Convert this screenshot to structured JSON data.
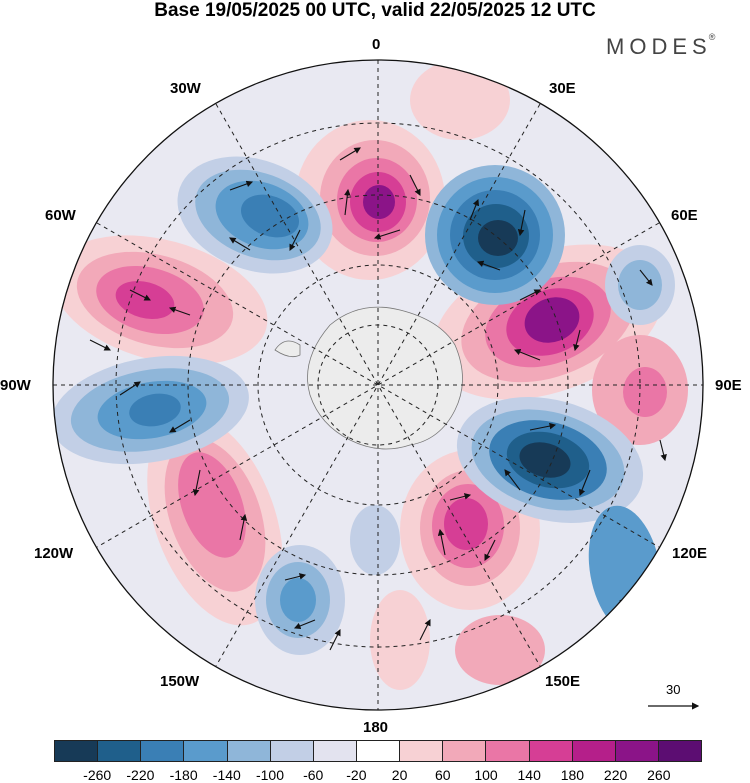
{
  "title": "Base 19/05/2025 00 UTC, valid 22/05/2025 12 UTC",
  "logo": "MODES",
  "logo_mark": "®",
  "longitude_labels": {
    "0": "0",
    "30E": "30E",
    "60E": "60E",
    "90E": "90E",
    "120E": "120E",
    "150E": "150E",
    "180": "180",
    "150W": "150W",
    "120W": "120W",
    "90W": "90W",
    "60W": "60W",
    "30W": "30W"
  },
  "reference_vector": "30",
  "colorbar": {
    "ticks": [
      "-260",
      "-220",
      "-180",
      "-140",
      "-100",
      "-60",
      "-20",
      "20",
      "60",
      "100",
      "140",
      "180",
      "220",
      "260"
    ],
    "colors": [
      "#173a57",
      "#1f5f8b",
      "#3a7fb5",
      "#5a9bcc",
      "#8fb6d9",
      "#c2cfe6",
      "#e3e3ef",
      "#ffffff",
      "#f7d1d4",
      "#f2a9b9",
      "#ea76a6",
      "#d63e95",
      "#b51f8a",
      "#8b1488",
      "#5c0d72"
    ]
  }
}
